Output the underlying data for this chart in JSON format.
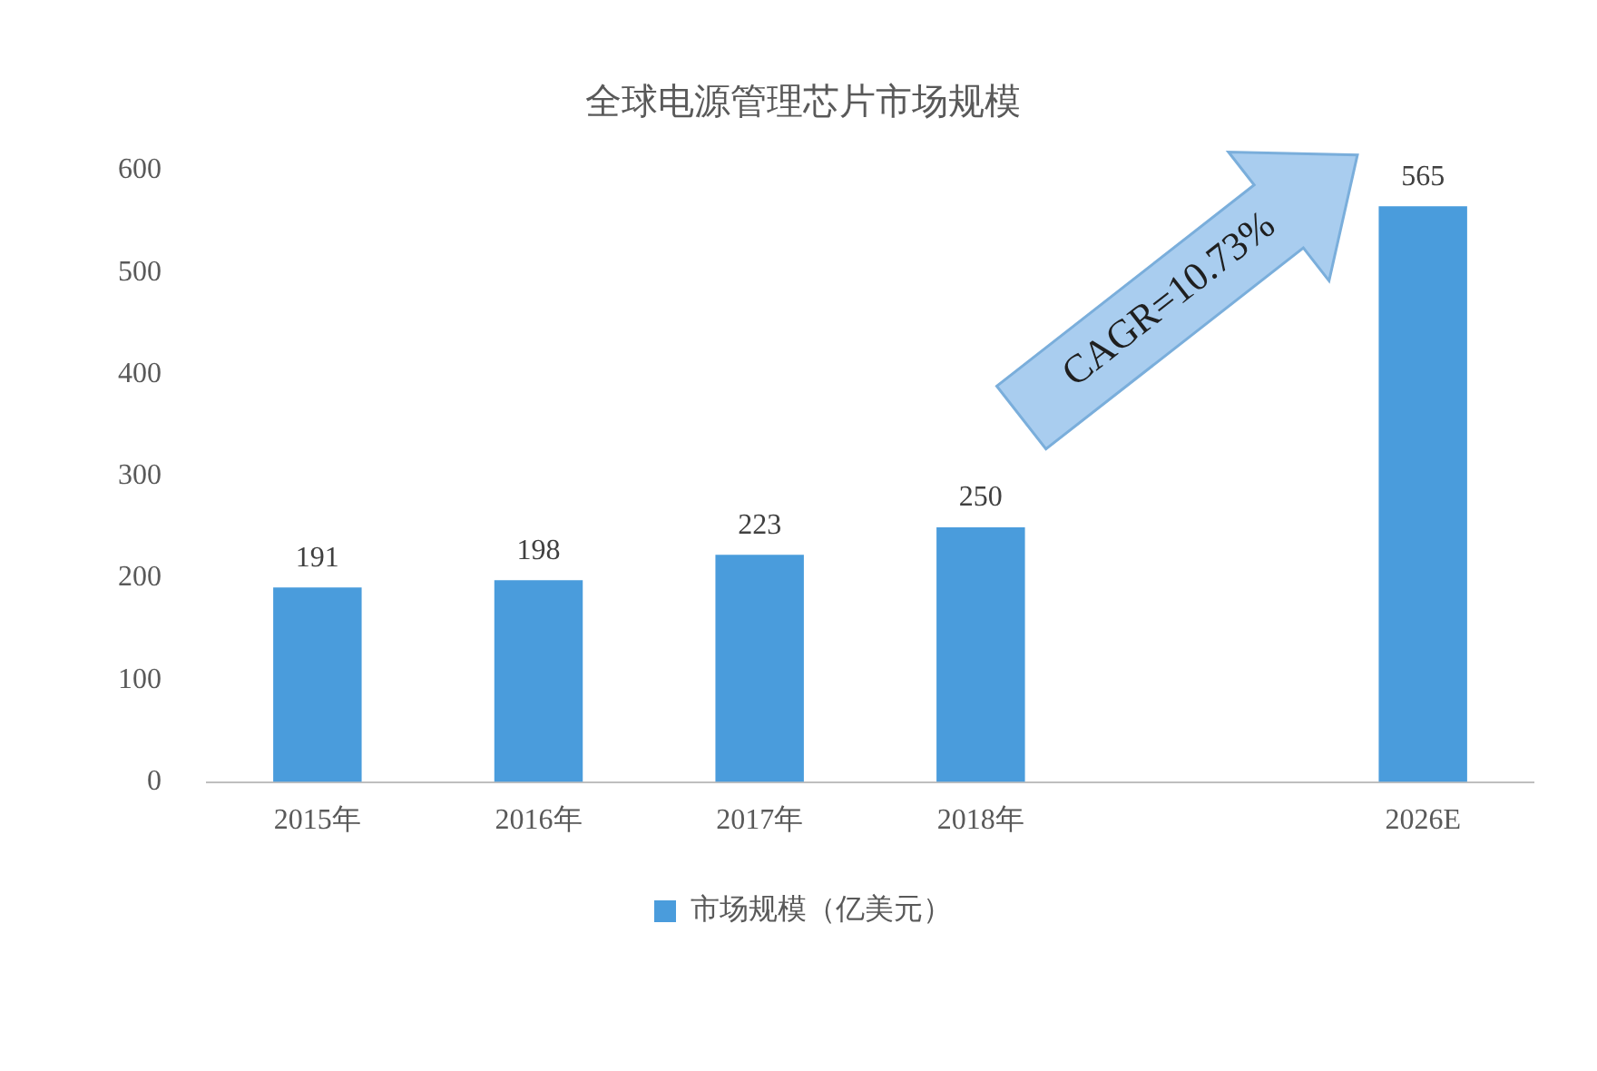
{
  "chart_data": {
    "type": "bar",
    "title": "全球电源管理芯片市场规模",
    "categories": [
      "2015年",
      "2016年",
      "2017年",
      "2018年",
      null,
      "2026E"
    ],
    "series": [
      {
        "name": "市场规模（亿美元）",
        "color": "#4a9cdc",
        "values": [
          191,
          198,
          223,
          250,
          null,
          565
        ]
      }
    ],
    "ylim": [
      0,
      600
    ],
    "yticks": [
      0,
      100,
      200,
      300,
      400,
      500,
      600
    ],
    "grid": false,
    "legend": "bottom",
    "data_labels": true,
    "annotations": [
      "CAGR=10.73%"
    ]
  }
}
